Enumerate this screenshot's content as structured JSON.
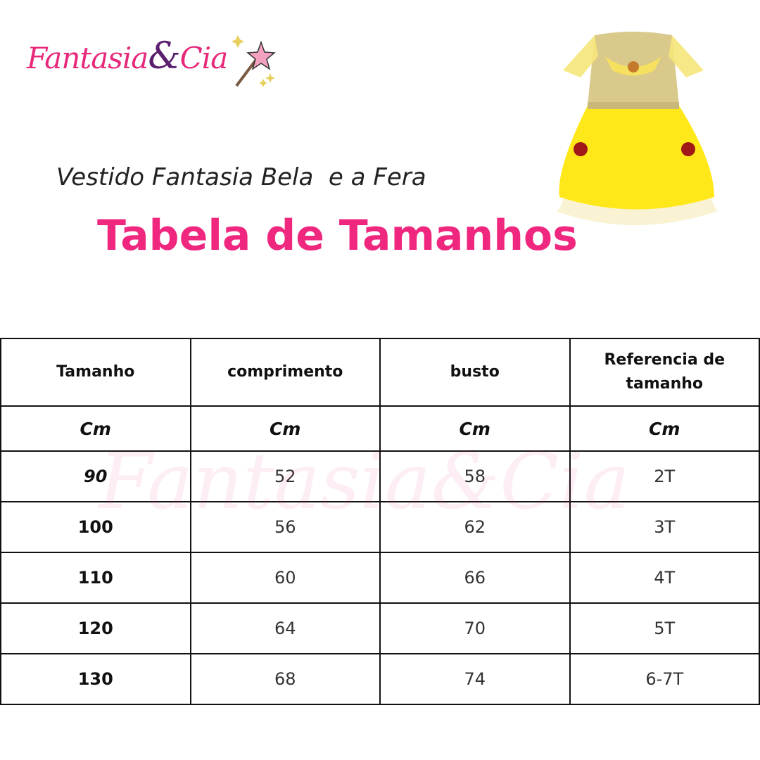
{
  "logo": {
    "text_main": "Fantasia",
    "text_amp": "&",
    "text_end": "Cia",
    "colors": {
      "pink": "#e8287a",
      "purple": "#5a1f6e"
    }
  },
  "subtitle": "Vestido Fantasia Bela  e a Fera",
  "title": "Tabela de Tamanhos",
  "title_color": "#f0277f",
  "table": {
    "headers": [
      "Tamanho",
      "comprimento",
      "busto",
      "Referencia de tamanho"
    ],
    "units": [
      "Cm",
      "Cm",
      "Cm",
      "Cm"
    ],
    "rows": [
      [
        "90",
        "52",
        "58",
        "2T"
      ],
      [
        "100",
        "56",
        "62",
        "3T"
      ],
      [
        "110",
        "60",
        "66",
        "4T"
      ],
      [
        "120",
        "64",
        "70",
        "5T"
      ],
      [
        "130",
        "68",
        "74",
        "6-7T"
      ]
    ]
  }
}
